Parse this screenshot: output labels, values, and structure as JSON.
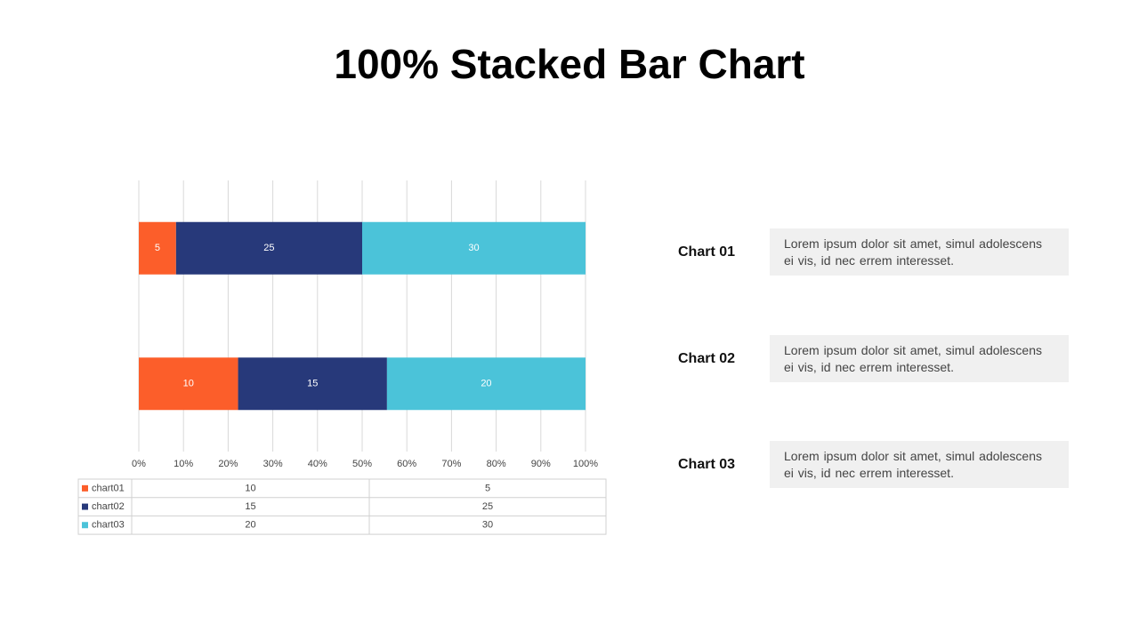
{
  "chart_data": {
    "type": "bar",
    "orientation": "horizontal",
    "stacking": "percent",
    "title": "100% Stacked Bar Chart",
    "categories": [
      null,
      null
    ],
    "series": [
      {
        "name": "chart01",
        "color": "#fc5e2a",
        "values": [
          10,
          5
        ]
      },
      {
        "name": "chart02",
        "color": "#27397a",
        "values": [
          15,
          25
        ]
      },
      {
        "name": "chart03",
        "color": "#4bc3d9",
        "values": [
          20,
          30
        ]
      }
    ],
    "xlim": [
      0,
      100
    ],
    "xticks": [
      {
        "value": 0,
        "label": "0%"
      },
      {
        "value": 10,
        "label": "10%"
      },
      {
        "value": 20,
        "label": "20%"
      },
      {
        "value": 30,
        "label": "30%"
      },
      {
        "value": 40,
        "label": "40%"
      },
      {
        "value": 50,
        "label": "50%"
      },
      {
        "value": 60,
        "label": "60%"
      },
      {
        "value": 70,
        "label": "70%"
      },
      {
        "value": 80,
        "label": "80%"
      },
      {
        "value": 90,
        "label": "90%"
      },
      {
        "value": 100,
        "label": "100%"
      }
    ],
    "grid": true,
    "data_table": true
  },
  "notes": [
    {
      "label": "Chart 01",
      "text": "Lorem ipsum dolor sit amet, simul adolescens ei vis, id nec errem interesset."
    },
    {
      "label": "Chart 02",
      "text": "Lorem ipsum dolor sit amet, simul adolescens ei vis, id nec errem interesset."
    },
    {
      "label": "Chart 03",
      "text": "Lorem ipsum dolor sit amet, simul adolescens ei vis, id nec errem interesset."
    }
  ]
}
